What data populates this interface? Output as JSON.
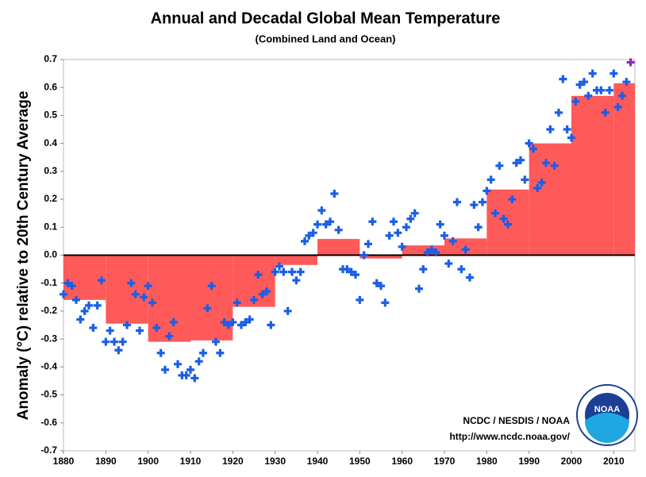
{
  "chart_data": {
    "type": "combo",
    "title": "Annual and Decadal Global Mean Temperature",
    "subtitle": "(Combined Land and Ocean)",
    "ylabel": "Anomaly (°C) relative to 20th Century Average",
    "credit": [
      "NCDC / NESDIS / NOAA",
      "http://www.ncdc.noaa.gov/"
    ],
    "logo_text": "NOAA",
    "xlim": [
      1880,
      2015
    ],
    "ylim": [
      -0.7,
      0.7
    ],
    "xticks": [
      1880,
      1890,
      1900,
      1910,
      1920,
      1930,
      1940,
      1950,
      1960,
      1970,
      1980,
      1990,
      2000,
      2010
    ],
    "yticks": [
      0.7,
      0.6,
      0.5,
      0.4,
      0.3,
      0.2,
      0.1,
      {
        "value": 0,
        "label": "0.0"
      },
      -0.1,
      -0.2,
      -0.3,
      -0.4,
      -0.5,
      -0.6,
      -0.7
    ],
    "grid": false,
    "series": [
      {
        "type": "step-bar",
        "color": "#ff5a5a",
        "bins": [
          1880,
          1890,
          1900,
          1910,
          1920,
          1930,
          1940,
          1950,
          1960,
          1970,
          1980,
          1990,
          2000,
          2010,
          2015
        ],
        "values": [
          -0.16,
          -0.245,
          -0.31,
          -0.305,
          -0.185,
          -0.035,
          0.058,
          -0.012,
          0.035,
          0.06,
          0.235,
          0.4,
          0.57,
          0.615
        ]
      },
      {
        "type": "scatter",
        "color": "#1a5ee8",
        "x": [
          1880,
          1881,
          1882,
          1883,
          1884,
          1885,
          1886,
          1887,
          1888,
          1889,
          1890,
          1891,
          1892,
          1893,
          1894,
          1895,
          1896,
          1897,
          1898,
          1899,
          1900,
          1901,
          1902,
          1903,
          1904,
          1905,
          1906,
          1907,
          1908,
          1909,
          1910,
          1911,
          1912,
          1913,
          1914,
          1915,
          1916,
          1917,
          1918,
          1919,
          1920,
          1921,
          1922,
          1923,
          1924,
          1925,
          1926,
          1927,
          1928,
          1929,
          1930,
          1931,
          1932,
          1933,
          1934,
          1935,
          1936,
          1937,
          1938,
          1939,
          1940,
          1941,
          1942,
          1943,
          1944,
          1945,
          1946,
          1947,
          1948,
          1949,
          1950,
          1951,
          1952,
          1953,
          1954,
          1955,
          1956,
          1957,
          1958,
          1959,
          1960,
          1961,
          1962,
          1963,
          1964,
          1965,
          1966,
          1967,
          1968,
          1969,
          1970,
          1971,
          1972,
          1973,
          1974,
          1975,
          1976,
          1977,
          1978,
          1979,
          1980,
          1981,
          1982,
          1983,
          1984,
          1985,
          1986,
          1987,
          1988,
          1989,
          1990,
          1991,
          1992,
          1993,
          1994,
          1995,
          1996,
          1997,
          1998,
          1999,
          2000,
          2001,
          2002,
          2003,
          2004,
          2005,
          2006,
          2007,
          2008,
          2009,
          2010,
          2011,
          2012,
          2013
        ],
        "values": [
          -0.14,
          -0.1,
          -0.11,
          -0.16,
          -0.23,
          -0.2,
          -0.18,
          -0.26,
          -0.18,
          -0.09,
          -0.31,
          -0.27,
          -0.31,
          -0.34,
          -0.31,
          -0.25,
          -0.1,
          -0.14,
          -0.27,
          -0.15,
          -0.11,
          -0.17,
          -0.26,
          -0.35,
          -0.41,
          -0.29,
          -0.24,
          -0.39,
          -0.43,
          -0.43,
          -0.41,
          -0.44,
          -0.38,
          -0.35,
          -0.19,
          -0.11,
          -0.31,
          -0.35,
          -0.24,
          -0.25,
          -0.24,
          -0.17,
          -0.25,
          -0.24,
          -0.23,
          -0.16,
          -0.07,
          -0.14,
          -0.13,
          -0.25,
          -0.06,
          -0.04,
          -0.06,
          -0.2,
          -0.06,
          -0.09,
          -0.06,
          0.05,
          0.07,
          0.08,
          0.11,
          0.16,
          0.11,
          0.12,
          0.22,
          0.09,
          -0.05,
          -0.05,
          -0.06,
          -0.07,
          -0.16,
          0.0,
          0.04,
          0.12,
          -0.1,
          -0.11,
          -0.17,
          0.07,
          0.12,
          0.08,
          0.03,
          0.1,
          0.13,
          0.15,
          -0.12,
          -0.05,
          0.01,
          0.02,
          0.01,
          0.11,
          0.07,
          -0.03,
          0.05,
          0.19,
          -0.05,
          0.02,
          -0.08,
          0.18,
          0.1,
          0.19,
          0.23,
          0.27,
          0.15,
          0.32,
          0.13,
          0.11,
          0.2,
          0.33,
          0.34,
          0.27,
          0.4,
          0.38,
          0.24,
          0.26,
          0.33,
          0.45,
          0.32,
          0.51,
          0.63,
          0.45,
          0.42,
          0.55,
          0.61,
          0.62,
          0.57,
          0.65,
          0.59,
          0.59,
          0.51,
          0.59,
          0.65,
          0.53,
          0.57,
          0.62
        ]
      },
      {
        "type": "scatter",
        "color": "#8e2bb0",
        "x": [
          2014
        ],
        "values": [
          0.69
        ]
      }
    ]
  }
}
